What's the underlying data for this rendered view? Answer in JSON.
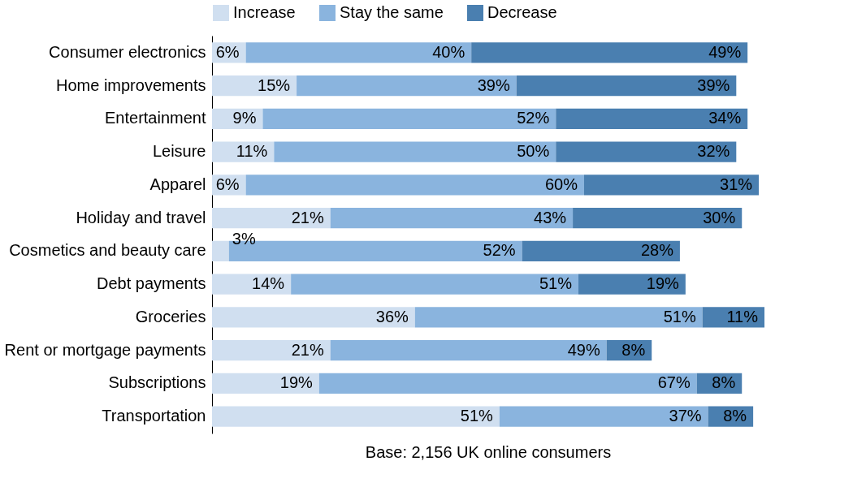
{
  "chart_data": {
    "type": "bar",
    "orientation": "horizontal",
    "stacked": true,
    "legend": "top",
    "grid": false,
    "categories": [
      "Consumer electronics",
      "Home improvements",
      "Entertainment",
      "Leisure",
      "Apparel",
      "Holiday and travel",
      "Cosmetics and beauty care",
      "Debt payments",
      "Groceries",
      "Rent or mortgage payments",
      "Subscriptions",
      "Transportation"
    ],
    "series": [
      {
        "name": "Increase",
        "color": "#d0dff0",
        "values": [
          6,
          15,
          9,
          11,
          6,
          21,
          3,
          14,
          36,
          21,
          19,
          51
        ],
        "value_labels": [
          "6%",
          "15%",
          "9%",
          "11%",
          "6%",
          "21%",
          "3%",
          "14%",
          "36%",
          "21%",
          "19%",
          "51%"
        ]
      },
      {
        "name": "Stay the same",
        "color": "#8ab4de",
        "values": [
          40,
          39,
          52,
          50,
          60,
          43,
          52,
          51,
          51,
          49,
          67,
          37
        ],
        "value_labels": [
          "40%",
          "39%",
          "52%",
          "50%",
          "60%",
          "43%",
          "52%",
          "51%",
          "51%",
          "49%",
          "67%",
          "37%"
        ]
      },
      {
        "name": "Decrease",
        "color": "#4a7fb0",
        "values": [
          49,
          39,
          34,
          32,
          31,
          30,
          28,
          19,
          11,
          8,
          8,
          8
        ],
        "value_labels": [
          "49%",
          "39%",
          "34%",
          "32%",
          "31%",
          "30%",
          "28%",
          "19%",
          "11%",
          "8%",
          "8%",
          "8%"
        ]
      }
    ],
    "annotations": [
      "Base: 2,156 UK online consumers"
    ]
  }
}
